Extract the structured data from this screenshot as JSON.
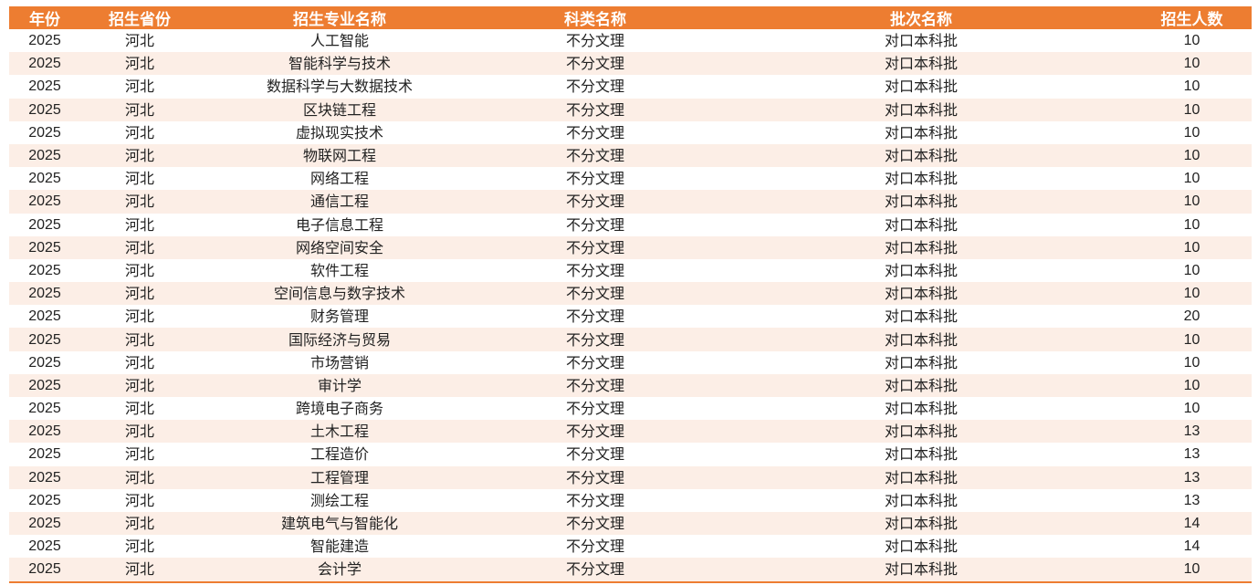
{
  "colors": {
    "header": "#ED7D31",
    "alt_row": "#FCEEE6"
  },
  "headers": [
    "年份",
    "招生省份",
    "招生专业名称",
    "科类名称",
    "批次名称",
    "招生人数"
  ],
  "rows": [
    [
      "2025",
      "河北",
      "人工智能",
      "不分文理",
      "对口本科批",
      "10"
    ],
    [
      "2025",
      "河北",
      "智能科学与技术",
      "不分文理",
      "对口本科批",
      "10"
    ],
    [
      "2025",
      "河北",
      "数据科学与大数据技术",
      "不分文理",
      "对口本科批",
      "10"
    ],
    [
      "2025",
      "河北",
      "区块链工程",
      "不分文理",
      "对口本科批",
      "10"
    ],
    [
      "2025",
      "河北",
      "虚拟现实技术",
      "不分文理",
      "对口本科批",
      "10"
    ],
    [
      "2025",
      "河北",
      "物联网工程",
      "不分文理",
      "对口本科批",
      "10"
    ],
    [
      "2025",
      "河北",
      "网络工程",
      "不分文理",
      "对口本科批",
      "10"
    ],
    [
      "2025",
      "河北",
      "通信工程",
      "不分文理",
      "对口本科批",
      "10"
    ],
    [
      "2025",
      "河北",
      "电子信息工程",
      "不分文理",
      "对口本科批",
      "10"
    ],
    [
      "2025",
      "河北",
      "网络空间安全",
      "不分文理",
      "对口本科批",
      "10"
    ],
    [
      "2025",
      "河北",
      "软件工程",
      "不分文理",
      "对口本科批",
      "10"
    ],
    [
      "2025",
      "河北",
      "空间信息与数字技术",
      "不分文理",
      "对口本科批",
      "10"
    ],
    [
      "2025",
      "河北",
      "财务管理",
      "不分文理",
      "对口本科批",
      "20"
    ],
    [
      "2025",
      "河北",
      "国际经济与贸易",
      "不分文理",
      "对口本科批",
      "10"
    ],
    [
      "2025",
      "河北",
      "市场营销",
      "不分文理",
      "对口本科批",
      "10"
    ],
    [
      "2025",
      "河北",
      "审计学",
      "不分文理",
      "对口本科批",
      "10"
    ],
    [
      "2025",
      "河北",
      "跨境电子商务",
      "不分文理",
      "对口本科批",
      "10"
    ],
    [
      "2025",
      "河北",
      "土木工程",
      "不分文理",
      "对口本科批",
      "13"
    ],
    [
      "2025",
      "河北",
      "工程造价",
      "不分文理",
      "对口本科批",
      "13"
    ],
    [
      "2025",
      "河北",
      "工程管理",
      "不分文理",
      "对口本科批",
      "13"
    ],
    [
      "2025",
      "河北",
      "测绘工程",
      "不分文理",
      "对口本科批",
      "13"
    ],
    [
      "2025",
      "河北",
      "建筑电气与智能化",
      "不分文理",
      "对口本科批",
      "14"
    ],
    [
      "2025",
      "河北",
      "智能建造",
      "不分文理",
      "对口本科批",
      "14"
    ],
    [
      "2025",
      "河北",
      "会计学",
      "不分文理",
      "对口本科批",
      "10"
    ]
  ]
}
